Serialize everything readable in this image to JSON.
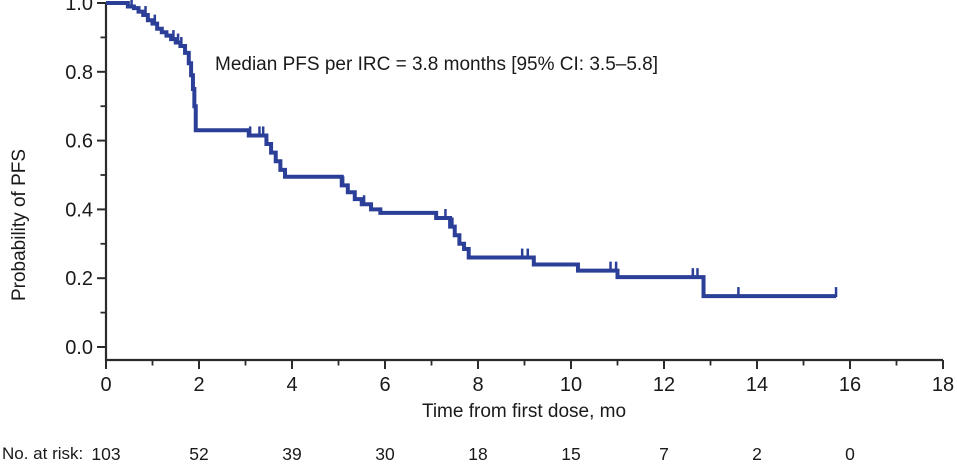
{
  "chart_data": {
    "type": "line",
    "subtype": "kaplan-meier-step",
    "annotation": "Median PFS per IRC = 3.8 months [95% CI: 3.5–5.8]",
    "xlabel": "Time from first dose, mo",
    "ylabel": "Probability of PFS",
    "xlim": [
      0,
      18
    ],
    "ylim": [
      0.0,
      1.0
    ],
    "grid": false,
    "legend_position": "none",
    "axis_color": "#2b2b2b",
    "x_major_ticks": [
      0,
      2,
      4,
      6,
      8,
      10,
      12,
      14,
      16,
      18
    ],
    "x_minor_ticks": [
      1,
      3,
      5,
      7,
      9,
      11,
      13,
      15,
      17
    ],
    "y_major_ticks": [
      0.0,
      0.2,
      0.4,
      0.6,
      0.8,
      1.0
    ],
    "y_minor_ticks": [
      0.1,
      0.3,
      0.5,
      0.7,
      0.9
    ],
    "series": [
      {
        "name": "PFS per IRC",
        "color": "#2b3f98",
        "start": [
          0,
          1.0
        ],
        "step_points": [
          [
            0.47,
            0.99
          ],
          [
            0.6,
            0.985
          ],
          [
            0.7,
            0.975
          ],
          [
            0.8,
            0.965
          ],
          [
            0.9,
            0.95
          ],
          [
            1.0,
            0.94
          ],
          [
            1.1,
            0.925
          ],
          [
            1.2,
            0.915
          ],
          [
            1.3,
            0.905
          ],
          [
            1.4,
            0.895
          ],
          [
            1.5,
            0.885
          ],
          [
            1.6,
            0.875
          ],
          [
            1.7,
            0.855
          ],
          [
            1.78,
            0.825
          ],
          [
            1.83,
            0.79
          ],
          [
            1.87,
            0.75
          ],
          [
            1.9,
            0.7
          ],
          [
            1.93,
            0.63
          ],
          [
            3.07,
            0.615
          ],
          [
            3.45,
            0.59
          ],
          [
            3.55,
            0.565
          ],
          [
            3.65,
            0.54
          ],
          [
            3.75,
            0.515
          ],
          [
            3.85,
            0.495
          ],
          [
            5.07,
            0.47
          ],
          [
            5.2,
            0.45
          ],
          [
            5.35,
            0.43
          ],
          [
            5.5,
            0.415
          ],
          [
            5.7,
            0.4
          ],
          [
            5.9,
            0.39
          ],
          [
            7.1,
            0.375
          ],
          [
            7.4,
            0.35
          ],
          [
            7.5,
            0.325
          ],
          [
            7.6,
            0.3
          ],
          [
            7.7,
            0.285
          ],
          [
            7.8,
            0.26
          ],
          [
            9.2,
            0.24
          ],
          [
            10.15,
            0.222
          ],
          [
            11.0,
            0.203
          ],
          [
            12.85,
            0.148
          ]
        ],
        "end_x": 15.7,
        "censor_marks": [
          [
            0.55,
            0.99
          ],
          [
            0.85,
            0.965
          ],
          [
            1.05,
            0.94
          ],
          [
            1.45,
            0.895
          ],
          [
            1.55,
            0.885
          ],
          [
            1.62,
            0.875
          ],
          [
            3.1,
            0.615
          ],
          [
            3.3,
            0.615
          ],
          [
            3.38,
            0.615
          ],
          [
            5.1,
            0.47
          ],
          [
            5.55,
            0.415
          ],
          [
            7.3,
            0.375
          ],
          [
            7.45,
            0.35
          ],
          [
            8.95,
            0.26
          ],
          [
            9.07,
            0.26
          ],
          [
            10.85,
            0.222
          ],
          [
            10.97,
            0.222
          ],
          [
            12.62,
            0.203
          ],
          [
            12.72,
            0.203
          ],
          [
            13.6,
            0.148
          ],
          [
            15.7,
            0.148
          ]
        ]
      }
    ]
  },
  "risk_table": {
    "label": "No. at risk:",
    "times": [
      0,
      2,
      4,
      6,
      8,
      10,
      12,
      14,
      16
    ],
    "counts": [
      "103",
      "52",
      "39",
      "30",
      "18",
      "15",
      "7",
      "2",
      "0"
    ]
  }
}
